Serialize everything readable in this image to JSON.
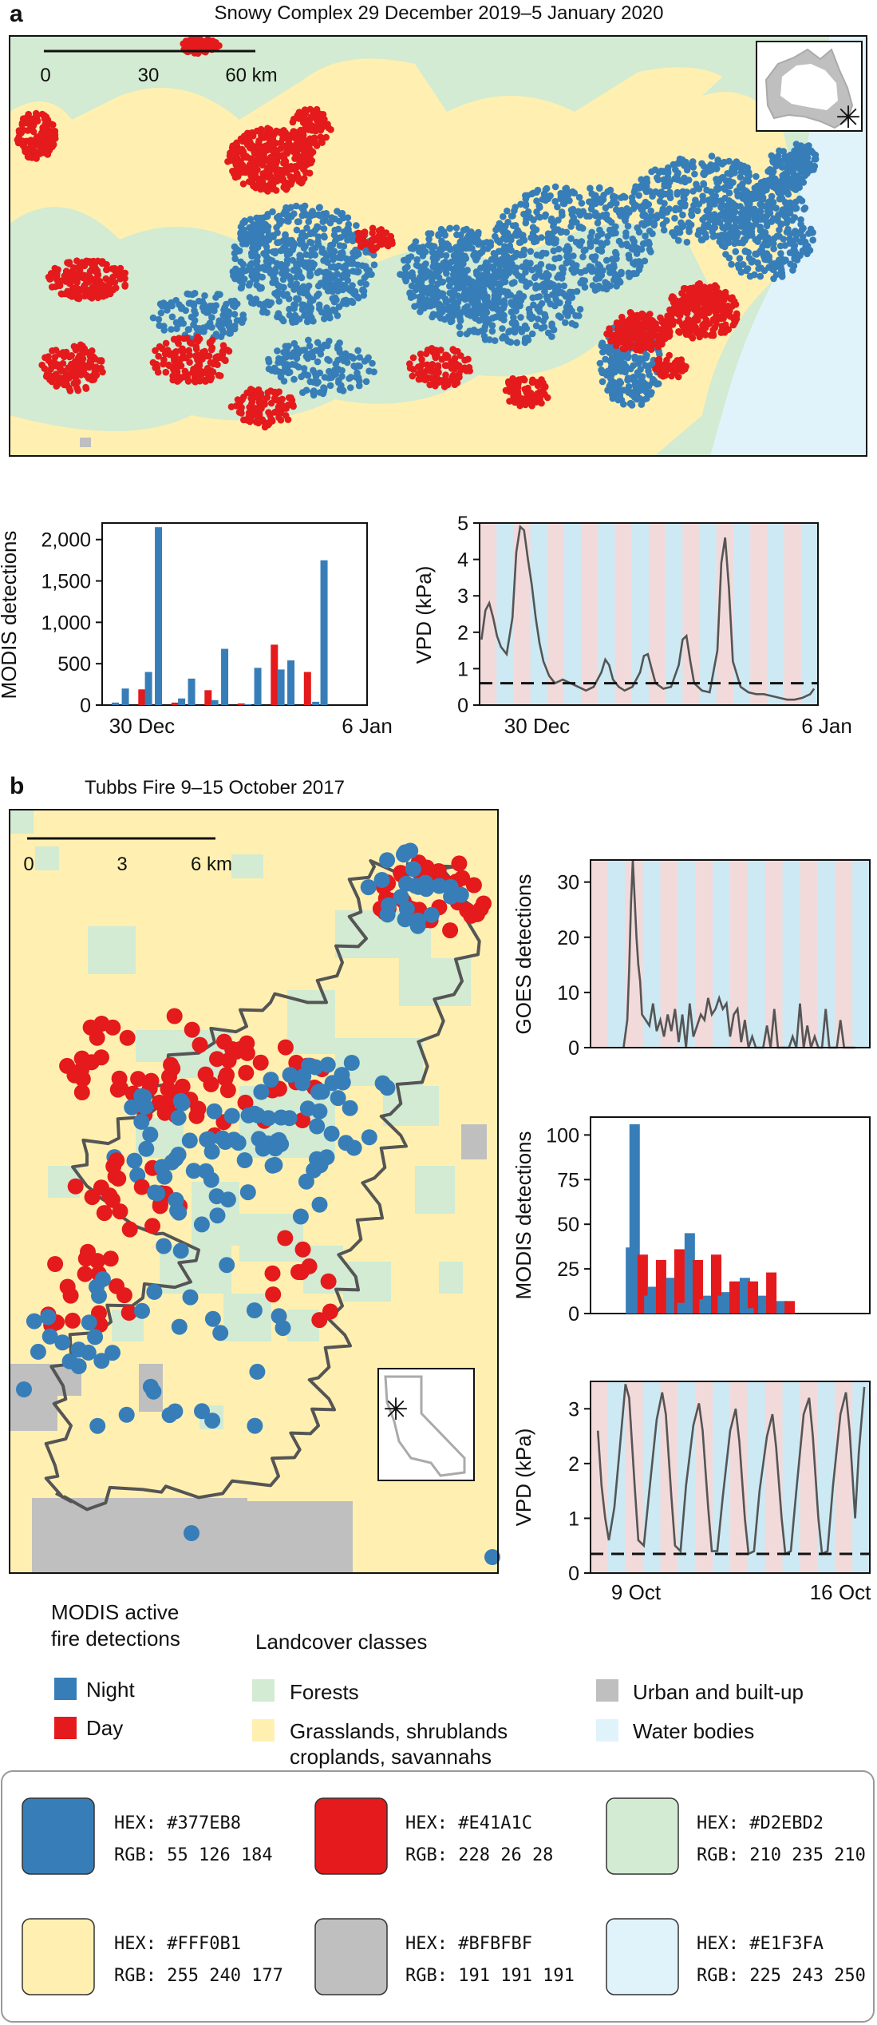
{
  "palette": {
    "night": "#377EB8",
    "day": "#E41A1C",
    "forest": "#D2EBD2",
    "grass": "#FFF0B1",
    "urban": "#BFBFBF",
    "water": "#E1F3FA",
    "line": "#555555",
    "ink": "#111111"
  },
  "panel_a": {
    "letter": "a",
    "title": "Snowy Complex 29 December 2019–5 January 2020",
    "scalebar": {
      "ticks": [
        "0",
        "30",
        "60 km"
      ]
    },
    "inset": {
      "icon": "australia-map-icon",
      "marker": "✳"
    }
  },
  "panel_b": {
    "letter": "b",
    "title": "Tubbs Fire 9–15 October 2017",
    "scalebar": {
      "ticks": [
        "0",
        "3",
        "6 km"
      ]
    },
    "inset": {
      "icon": "california-map-icon",
      "marker": "✳"
    }
  },
  "legend": {
    "modis_title_line1": "MODIS active",
    "modis_title_line2": "fire detections",
    "night": "Night",
    "day": "Day",
    "landcover_title": "Landcover classes",
    "forests": "Forests",
    "grass_line1": "Grasslands, shrublands",
    "grass_line2": "croplands, savannahs",
    "urban": "Urban and built-up",
    "water": "Water bodies"
  },
  "swatches": [
    {
      "hex_label": "HEX: #377EB8",
      "rgb_label": "RGB:  55 126 184",
      "color": "#377EB8"
    },
    {
      "hex_label": "HEX: #E41A1C",
      "rgb_label": "RGB: 228  26  28",
      "color": "#E41A1C"
    },
    {
      "hex_label": "HEX: #D2EBD2",
      "rgb_label": "RGB: 210 235 210",
      "color": "#D2EBD2"
    },
    {
      "hex_label": "HEX: #FFF0B1",
      "rgb_label": "RGB: 255 240 177",
      "color": "#FFF0B1"
    },
    {
      "hex_label": "HEX: #BFBFBF",
      "rgb_label": "RGB: 191 191 191",
      "color": "#BFBFBF"
    },
    {
      "hex_label": "HEX: #E1F3FA",
      "rgb_label": "RGB: 225 243 250",
      "color": "#E1F3FA"
    }
  ],
  "chart_data": [
    {
      "id": "a_modis",
      "type": "bar",
      "ylabel": "MODIS detections",
      "xticks": [
        "30 Dec",
        "6 Jan"
      ],
      "yticks": [
        "0",
        "500",
        "1,000",
        "1,500",
        "2,000"
      ],
      "ylim": [
        0,
        2200
      ],
      "xlim": [
        0,
        8
      ],
      "series": [
        {
          "name": "Night",
          "x": [
            0.7,
            1.7,
            2.7,
            3.7,
            4.7,
            5.7,
            6.7
          ],
          "values": [
            200,
            2150,
            320,
            680,
            450,
            540,
            1750
          ]
        },
        {
          "name": "Day",
          "x": [
            1.2,
            2.2,
            3.2,
            4.2,
            5.2,
            6.2
          ],
          "values": [
            190,
            30,
            180,
            20,
            730,
            400
          ]
        },
        {
          "name": "Night small",
          "x": [
            0.4,
            1.4,
            2.4,
            3.4,
            4.4,
            5.4,
            6.45
          ],
          "values": [
            30,
            400,
            80,
            60,
            10,
            430,
            40
          ]
        }
      ]
    },
    {
      "id": "a_vpd",
      "type": "line",
      "ylabel": "VPD (kPa)",
      "xticks": [
        "30 Dec",
        "6 Jan"
      ],
      "yticks": [
        "0",
        "1",
        "2",
        "3",
        "4",
        "5"
      ],
      "ylim": [
        0,
        5
      ],
      "xlim": [
        -0.35,
        8.4
      ],
      "threshold": 0.6,
      "x": [
        -0.3,
        -0.2,
        -0.1,
        0,
        0.1,
        0.2,
        0.35,
        0.5,
        0.6,
        0.7,
        0.8,
        0.9,
        1.0,
        1.1,
        1.2,
        1.3,
        1.45,
        1.6,
        1.8,
        2.0,
        2.2,
        2.4,
        2.6,
        2.8,
        2.9,
        3.0,
        3.1,
        3.25,
        3.4,
        3.6,
        3.8,
        3.9,
        4.0,
        4.1,
        4.2,
        4.4,
        4.6,
        4.8,
        4.9,
        5.0,
        5.1,
        5.2,
        5.4,
        5.6,
        5.8,
        5.9,
        6.0,
        6.1,
        6.2,
        6.4,
        6.6,
        6.8,
        7.0,
        7.2,
        7.4,
        7.6,
        7.8,
        8.0,
        8.2,
        8.3
      ],
      "y": [
        1.8,
        2.6,
        2.8,
        2.4,
        1.9,
        1.6,
        1.4,
        2.4,
        4.2,
        4.9,
        4.8,
        4.0,
        3.3,
        2.4,
        1.7,
        1.2,
        0.8,
        0.6,
        0.7,
        0.6,
        0.5,
        0.4,
        0.5,
        0.9,
        1.25,
        1.1,
        0.7,
        0.5,
        0.4,
        0.5,
        0.9,
        1.35,
        1.4,
        1.0,
        0.6,
        0.45,
        0.5,
        1.1,
        1.8,
        1.9,
        1.2,
        0.6,
        0.4,
        0.35,
        1.5,
        3.9,
        4.6,
        3.2,
        1.2,
        0.5,
        0.35,
        0.3,
        0.3,
        0.25,
        0.2,
        0.15,
        0.15,
        0.2,
        0.3,
        0.45
      ]
    },
    {
      "id": "b_goes",
      "type": "line",
      "ylabel": "GOES detections",
      "yticks": [
        "0",
        "10",
        "20",
        "30"
      ],
      "ylim": [
        0,
        34
      ],
      "xlim": [
        -0.2,
        7.4
      ],
      "x": [
        0.7,
        0.8,
        0.85,
        0.9,
        0.95,
        1.0,
        1.05,
        1.1,
        1.15,
        1.2,
        1.3,
        1.4,
        1.5,
        1.6,
        1.7,
        1.8,
        1.9,
        2.0,
        2.1,
        2.2,
        2.3,
        2.4,
        2.5,
        2.6,
        2.7,
        2.8,
        2.9,
        3.0,
        3.1,
        3.2,
        3.3,
        3.4,
        3.5,
        3.6,
        3.7,
        3.8,
        3.9,
        4.0,
        4.1,
        4.2,
        4.3,
        4.4,
        4.5,
        4.6,
        4.7,
        4.8,
        4.9,
        5.0,
        5.1,
        5.2,
        5.3,
        5.4,
        5.5,
        5.6,
        5.7,
        5.8,
        5.9,
        6.0,
        6.1,
        6.2,
        6.3,
        6.4,
        6.5,
        6.6,
        6.7,
        6.8,
        6.9,
        7.0
      ],
      "y": [
        0,
        5,
        14,
        26,
        34,
        27,
        20,
        15,
        12,
        6,
        5,
        4,
        8,
        3,
        5,
        2,
        6,
        3,
        7,
        1,
        6,
        0,
        8,
        2,
        4,
        6,
        5,
        9,
        6,
        7,
        9,
        7,
        8,
        2,
        6,
        7,
        1,
        5,
        0,
        2,
        0,
        0,
        0,
        4,
        0,
        7,
        0,
        0,
        0,
        0,
        2,
        0,
        8,
        0,
        4,
        0,
        2,
        0,
        0,
        7,
        0,
        0,
        0,
        5,
        0,
        0,
        0,
        0
      ]
    },
    {
      "id": "b_modis",
      "type": "bar",
      "ylabel": "MODIS detections",
      "yticks": [
        "0",
        "25",
        "50",
        "75",
        "100"
      ],
      "ylim": [
        0,
        110
      ],
      "xlim": [
        -0.2,
        7.4
      ],
      "series": [
        {
          "name": "Night",
          "x": [
            1.0,
            1.5,
            2.0,
            2.5,
            3.0,
            3.5,
            4.0,
            4.5,
            5.0
          ],
          "values": [
            106,
            15,
            20,
            45,
            10,
            12,
            20,
            10,
            7
          ]
        },
        {
          "name": "Day",
          "x": [
            1.22,
            1.72,
            2.22,
            2.72,
            3.22,
            3.72,
            4.22,
            4.72,
            5.22
          ],
          "values": [
            33,
            30,
            36,
            30,
            33,
            18,
            18,
            23,
            7
          ]
        },
        {
          "name": "Night small",
          "x": [
            0.9,
            1.4,
            2.3,
            2.9,
            3.4,
            4.1
          ],
          "values": [
            37,
            10,
            6,
            8,
            10,
            3
          ]
        }
      ]
    },
    {
      "id": "b_vpd",
      "type": "line",
      "ylabel": "VPD (kPa)",
      "xticks": [
        "9 Oct",
        "16 Oct"
      ],
      "yticks": [
        "0",
        "1",
        "2",
        "3"
      ],
      "ylim": [
        0,
        3.5
      ],
      "xlim": [
        -0.2,
        7.4
      ],
      "threshold": 0.35,
      "x": [
        0.0,
        0.1,
        0.2,
        0.3,
        0.45,
        0.6,
        0.75,
        0.85,
        1.0,
        1.1,
        1.25,
        1.4,
        1.6,
        1.75,
        1.85,
        2.0,
        2.1,
        2.25,
        2.4,
        2.6,
        2.75,
        2.85,
        3.0,
        3.1,
        3.25,
        3.4,
        3.6,
        3.75,
        3.85,
        4.0,
        4.1,
        4.25,
        4.4,
        4.6,
        4.75,
        4.85,
        5.0,
        5.1,
        5.25,
        5.4,
        5.6,
        5.75,
        5.85,
        6.0,
        6.1,
        6.25,
        6.4,
        6.6,
        6.75,
        6.85,
        7.0,
        7.1,
        7.25
      ],
      "y": [
        2.6,
        1.6,
        1.0,
        0.6,
        1.2,
        2.3,
        3.45,
        3.2,
        1.6,
        0.6,
        0.5,
        1.5,
        2.8,
        3.3,
        2.9,
        1.4,
        0.5,
        0.4,
        1.6,
        2.7,
        3.1,
        2.6,
        1.2,
        0.4,
        0.4,
        1.4,
        2.6,
        3.0,
        2.4,
        1.0,
        0.35,
        0.4,
        1.5,
        2.5,
        2.9,
        2.3,
        1.0,
        0.35,
        0.4,
        1.5,
        2.9,
        3.2,
        2.5,
        1.0,
        0.35,
        0.4,
        1.6,
        2.9,
        3.3,
        2.6,
        1.0,
        2.2,
        3.4
      ]
    }
  ]
}
